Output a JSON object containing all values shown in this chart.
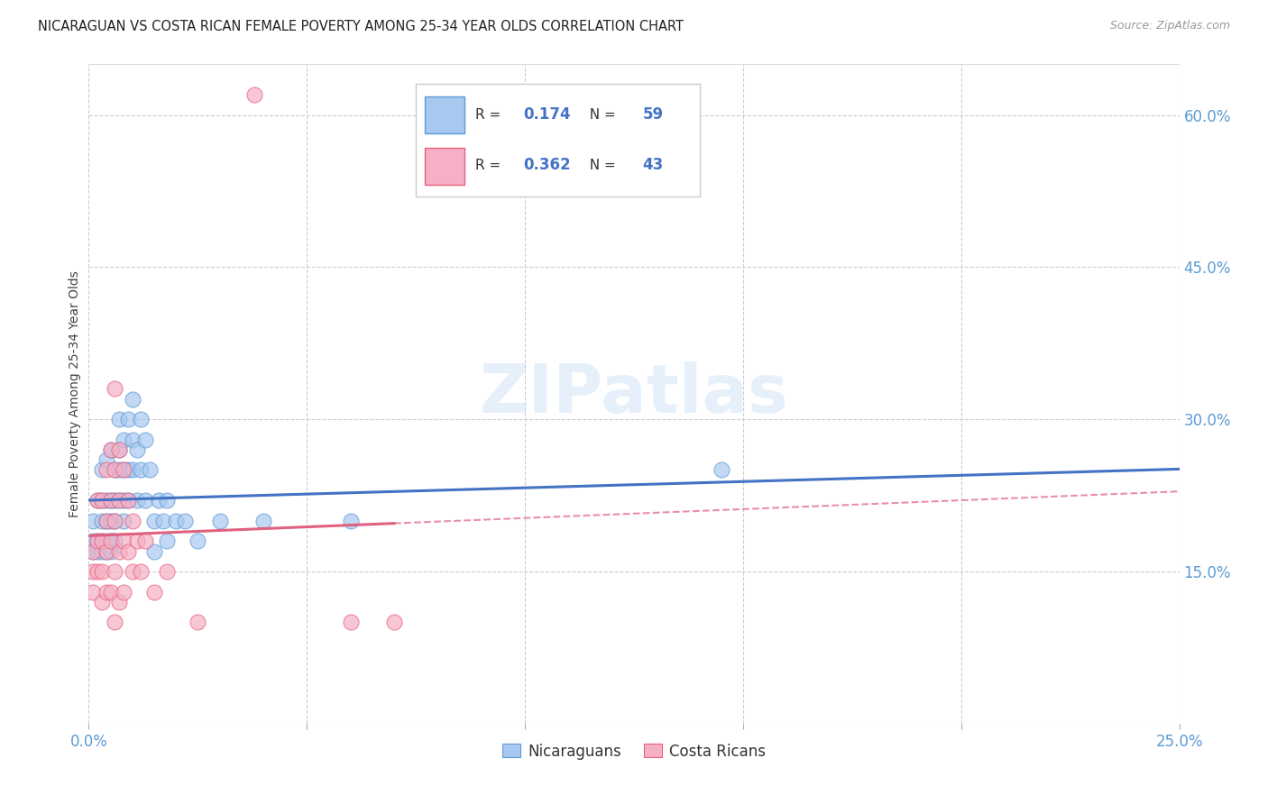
{
  "title": "NICARAGUAN VS COSTA RICAN FEMALE POVERTY AMONG 25-34 YEAR OLDS CORRELATION CHART",
  "source": "Source: ZipAtlas.com",
  "ylabel": "Female Poverty Among 25-34 Year Olds",
  "xlim": [
    0.0,
    0.25
  ],
  "ylim": [
    0.0,
    0.65
  ],
  "xtick_positions": [
    0.0,
    0.05,
    0.1,
    0.15,
    0.2,
    0.25
  ],
  "xticklabels": [
    "0.0%",
    "",
    "",
    "",
    "",
    "25.0%"
  ],
  "yticks_right": [
    0.15,
    0.3,
    0.45,
    0.6
  ],
  "ytick_right_labels": [
    "15.0%",
    "30.0%",
    "45.0%",
    "60.0%"
  ],
  "blue_R": 0.174,
  "blue_N": 59,
  "pink_R": 0.362,
  "pink_N": 43,
  "blue_color": "#a8c8f0",
  "pink_color": "#f5b0c5",
  "blue_edge_color": "#5b9bd5",
  "pink_edge_color": "#e8607a",
  "blue_line_color": "#4472c4",
  "pink_line_color": "#e06080",
  "watermark": "ZIPatlas",
  "legend_label_blue": "Nicaraguans",
  "legend_label_pink": "Costa Ricans",
  "blue_scatter": [
    [
      0.001,
      0.2
    ],
    [
      0.001,
      0.18
    ],
    [
      0.001,
      0.17
    ],
    [
      0.002,
      0.22
    ],
    [
      0.002,
      0.18
    ],
    [
      0.002,
      0.17
    ],
    [
      0.003,
      0.25
    ],
    [
      0.003,
      0.22
    ],
    [
      0.003,
      0.2
    ],
    [
      0.003,
      0.18
    ],
    [
      0.003,
      0.17
    ],
    [
      0.004,
      0.26
    ],
    [
      0.004,
      0.22
    ],
    [
      0.004,
      0.2
    ],
    [
      0.004,
      0.18
    ],
    [
      0.004,
      0.17
    ],
    [
      0.005,
      0.27
    ],
    [
      0.005,
      0.22
    ],
    [
      0.005,
      0.2
    ],
    [
      0.005,
      0.18
    ],
    [
      0.005,
      0.17
    ],
    [
      0.006,
      0.25
    ],
    [
      0.006,
      0.22
    ],
    [
      0.006,
      0.2
    ],
    [
      0.006,
      0.18
    ],
    [
      0.007,
      0.3
    ],
    [
      0.007,
      0.27
    ],
    [
      0.007,
      0.25
    ],
    [
      0.007,
      0.22
    ],
    [
      0.008,
      0.28
    ],
    [
      0.008,
      0.25
    ],
    [
      0.008,
      0.22
    ],
    [
      0.008,
      0.2
    ],
    [
      0.009,
      0.3
    ],
    [
      0.009,
      0.25
    ],
    [
      0.009,
      0.22
    ],
    [
      0.01,
      0.32
    ],
    [
      0.01,
      0.28
    ],
    [
      0.01,
      0.25
    ],
    [
      0.011,
      0.27
    ],
    [
      0.011,
      0.22
    ],
    [
      0.012,
      0.3
    ],
    [
      0.012,
      0.25
    ],
    [
      0.013,
      0.28
    ],
    [
      0.013,
      0.22
    ],
    [
      0.014,
      0.25
    ],
    [
      0.015,
      0.2
    ],
    [
      0.015,
      0.17
    ],
    [
      0.016,
      0.22
    ],
    [
      0.017,
      0.2
    ],
    [
      0.018,
      0.22
    ],
    [
      0.018,
      0.18
    ],
    [
      0.02,
      0.2
    ],
    [
      0.022,
      0.2
    ],
    [
      0.025,
      0.18
    ],
    [
      0.03,
      0.2
    ],
    [
      0.04,
      0.2
    ],
    [
      0.06,
      0.2
    ],
    [
      0.145,
      0.25
    ]
  ],
  "pink_scatter": [
    [
      0.001,
      0.17
    ],
    [
      0.001,
      0.15
    ],
    [
      0.001,
      0.13
    ],
    [
      0.002,
      0.22
    ],
    [
      0.002,
      0.18
    ],
    [
      0.002,
      0.15
    ],
    [
      0.003,
      0.22
    ],
    [
      0.003,
      0.18
    ],
    [
      0.003,
      0.15
    ],
    [
      0.003,
      0.12
    ],
    [
      0.004,
      0.25
    ],
    [
      0.004,
      0.2
    ],
    [
      0.004,
      0.17
    ],
    [
      0.004,
      0.13
    ],
    [
      0.005,
      0.27
    ],
    [
      0.005,
      0.22
    ],
    [
      0.005,
      0.18
    ],
    [
      0.005,
      0.13
    ],
    [
      0.006,
      0.33
    ],
    [
      0.006,
      0.25
    ],
    [
      0.006,
      0.2
    ],
    [
      0.006,
      0.15
    ],
    [
      0.006,
      0.1
    ],
    [
      0.007,
      0.27
    ],
    [
      0.007,
      0.22
    ],
    [
      0.007,
      0.17
    ],
    [
      0.007,
      0.12
    ],
    [
      0.008,
      0.25
    ],
    [
      0.008,
      0.18
    ],
    [
      0.008,
      0.13
    ],
    [
      0.009,
      0.22
    ],
    [
      0.009,
      0.17
    ],
    [
      0.01,
      0.2
    ],
    [
      0.01,
      0.15
    ],
    [
      0.011,
      0.18
    ],
    [
      0.012,
      0.15
    ],
    [
      0.013,
      0.18
    ],
    [
      0.015,
      0.13
    ],
    [
      0.018,
      0.15
    ],
    [
      0.025,
      0.1
    ],
    [
      0.06,
      0.1
    ],
    [
      0.07,
      0.1
    ],
    [
      0.038,
      0.62
    ]
  ]
}
